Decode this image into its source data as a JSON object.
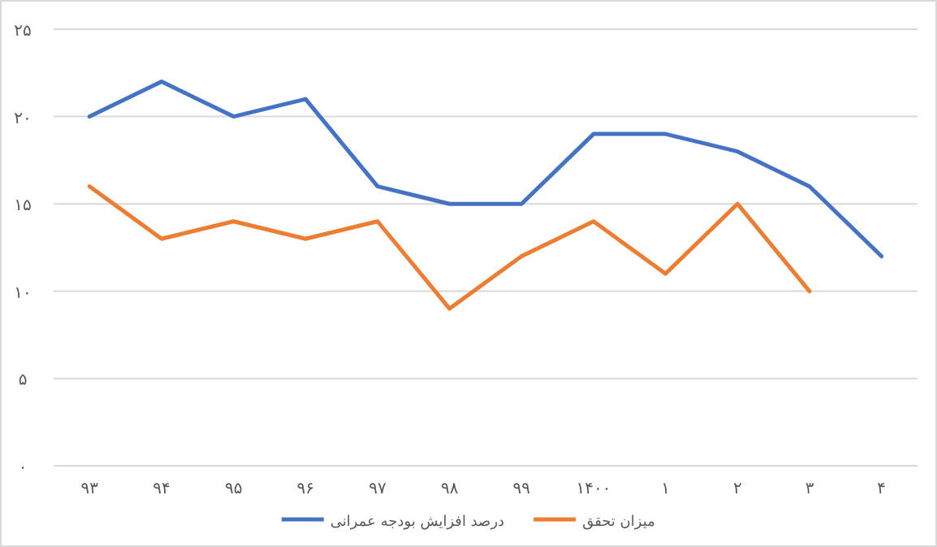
{
  "chart_data": {
    "type": "line",
    "categories": [
      "۹۳",
      "۹۴",
      "۹۵",
      "۹۶",
      "۹۷",
      "۹۸",
      "۹۹",
      "۱۴۰۰",
      "۱",
      "۲",
      "۳",
      "۴"
    ],
    "series": [
      {
        "name": "درصد افزایش بودجه عمرانی",
        "color": "#4472c4",
        "values": [
          20,
          22,
          20,
          21,
          16,
          15,
          15,
          19,
          19,
          18,
          16,
          12
        ]
      },
      {
        "name": "میزان تحقق",
        "color": "#ed7d31",
        "values": [
          16,
          13,
          14,
          13,
          14,
          9,
          12,
          14,
          11,
          15,
          10,
          null
        ]
      }
    ],
    "ylim": [
      0,
      25
    ],
    "yticks": [
      {
        "value": 0,
        "label": "۰"
      },
      {
        "value": 5,
        "label": "۵"
      },
      {
        "value": 10,
        "label": "۱۰"
      },
      {
        "value": 15,
        "label": "۱۵"
      },
      {
        "value": 20,
        "label": "۲۰"
      },
      {
        "value": 25,
        "label": "۲۵"
      }
    ],
    "grid": "y",
    "legend": "bottom",
    "marker": "none",
    "line_style": "solid"
  }
}
